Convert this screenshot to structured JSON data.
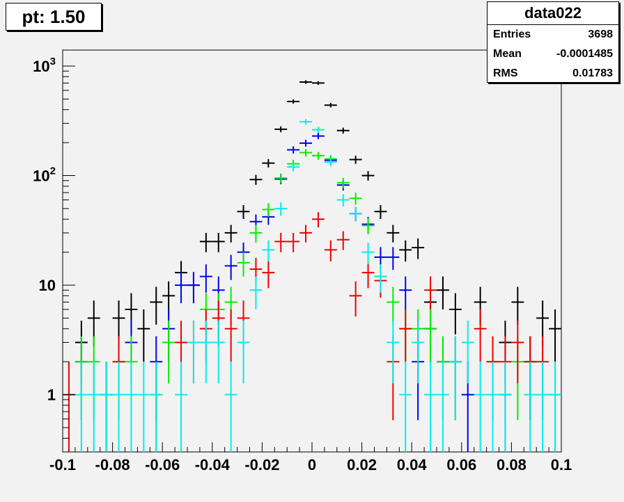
{
  "title": "pt: 1.50",
  "stats": {
    "name": "data022",
    "rows": [
      {
        "label": "Entries",
        "value": "3698"
      },
      {
        "label": "Mean",
        "value": "-0.0001485"
      },
      {
        "label": "RMS",
        "value": "0.01783"
      }
    ]
  },
  "chart_data": {
    "type": "scatter",
    "title": "pt: 1.50",
    "xlabel": "",
    "ylabel": "",
    "xlim": [
      -0.1,
      0.1
    ],
    "ylim": [
      0.3,
      1400
    ],
    "yscale": "log",
    "bin_width": 0.005,
    "x_ticks": [
      {
        "v": -0.1,
        "label": "-0.1"
      },
      {
        "v": -0.08,
        "label": "-0.08"
      },
      {
        "v": -0.06,
        "label": "-0.06"
      },
      {
        "v": -0.04,
        "label": "-0.04"
      },
      {
        "v": -0.02,
        "label": "-0.02"
      },
      {
        "v": 0,
        "label": "0"
      },
      {
        "v": 0.02,
        "label": "0.02"
      },
      {
        "v": 0.04,
        "label": "0.04"
      },
      {
        "v": 0.06,
        "label": "0.06"
      },
      {
        "v": 0.08,
        "label": "0.08"
      },
      {
        "v": 0.1,
        "label": "0.1"
      }
    ],
    "y_ticks": [
      {
        "v": 1,
        "label": "1"
      },
      {
        "v": 10,
        "label": "10"
      },
      {
        "v": 100,
        "base": "10",
        "exp": "2"
      },
      {
        "v": 1000,
        "base": "10",
        "exp": "3"
      }
    ],
    "grid": false,
    "series": [
      {
        "color": "#000000",
        "points": [
          [
            -0.0925,
            3
          ],
          [
            -0.0875,
            5
          ],
          [
            -0.0825,
            1
          ],
          [
            -0.0775,
            5
          ],
          [
            -0.0725,
            6
          ],
          [
            -0.0675,
            4
          ],
          [
            -0.0625,
            7
          ],
          [
            -0.0575,
            8
          ],
          [
            -0.0525,
            13
          ],
          [
            -0.0475,
            10
          ],
          [
            -0.0425,
            25
          ],
          [
            -0.0375,
            25
          ],
          [
            -0.0325,
            30
          ],
          [
            -0.0275,
            47
          ],
          [
            -0.0225,
            92
          ],
          [
            -0.0175,
            130
          ],
          [
            -0.0125,
            265
          ],
          [
            -0.0075,
            475
          ],
          [
            -0.0025,
            715
          ],
          [
            0.0025,
            700
          ],
          [
            0.0075,
            440
          ],
          [
            0.0125,
            258
          ],
          [
            0.0175,
            140
          ],
          [
            0.0225,
            100
          ],
          [
            0.0275,
            47
          ],
          [
            0.0325,
            30
          ],
          [
            0.0375,
            21
          ],
          [
            0.0425,
            22
          ],
          [
            0.0475,
            7
          ],
          [
            0.0525,
            9
          ],
          [
            0.0575,
            6
          ],
          [
            0.0675,
            7
          ],
          [
            0.0775,
            3
          ],
          [
            0.0825,
            7
          ],
          [
            0.0875,
            2
          ],
          [
            0.0925,
            5
          ],
          [
            0.0975,
            4
          ]
        ]
      },
      {
        "color": "#0000ee",
        "points": [
          [
            -0.0925,
            2
          ],
          [
            -0.0725,
            3
          ],
          [
            -0.0625,
            2
          ],
          [
            -0.0575,
            4
          ],
          [
            -0.0525,
            10
          ],
          [
            -0.0475,
            10
          ],
          [
            -0.0425,
            12
          ],
          [
            -0.0375,
            9
          ],
          [
            -0.0325,
            15
          ],
          [
            -0.0275,
            20
          ],
          [
            -0.0225,
            38
          ],
          [
            -0.0175,
            42
          ],
          [
            -0.0125,
            93
          ],
          [
            -0.0075,
            172
          ],
          [
            -0.0025,
            198
          ],
          [
            0.0025,
            230
          ],
          [
            0.0075,
            138
          ],
          [
            0.0125,
            82
          ],
          [
            0.0175,
            45
          ],
          [
            0.0225,
            36
          ],
          [
            0.0275,
            18
          ],
          [
            0.0325,
            18
          ],
          [
            0.0375,
            9
          ],
          [
            0.0425,
            2
          ],
          [
            0.0475,
            4
          ],
          [
            0.0525,
            2
          ],
          [
            0.0575,
            2
          ],
          [
            0.0625,
            1
          ],
          [
            0.0775,
            1
          ]
        ]
      },
      {
        "color": "#00ee00",
        "points": [
          [
            -0.0925,
            2
          ],
          [
            -0.0875,
            2
          ],
          [
            -0.0775,
            2
          ],
          [
            -0.0725,
            2
          ],
          [
            -0.0625,
            1
          ],
          [
            -0.0575,
            3
          ],
          [
            -0.0425,
            6
          ],
          [
            -0.0375,
            6
          ],
          [
            -0.0325,
            7
          ],
          [
            -0.0275,
            16
          ],
          [
            -0.0225,
            30
          ],
          [
            -0.0175,
            49
          ],
          [
            -0.0125,
            95
          ],
          [
            -0.0075,
            128
          ],
          [
            -0.0025,
            162
          ],
          [
            0.0025,
            152
          ],
          [
            0.0075,
            142
          ],
          [
            0.0125,
            86
          ],
          [
            0.0175,
            62
          ],
          [
            0.0225,
            35
          ],
          [
            0.0275,
            12
          ],
          [
            0.0325,
            7
          ],
          [
            0.0375,
            4
          ],
          [
            0.0425,
            4
          ],
          [
            0.0475,
            4
          ],
          [
            0.0525,
            2
          ],
          [
            0.0575,
            2
          ],
          [
            0.0725,
            2
          ],
          [
            0.0825,
            2
          ],
          [
            0.0875,
            2
          ],
          [
            0.0975,
            1
          ]
        ]
      },
      {
        "color": "#ee0000",
        "points": [
          [
            -0.0975,
            1
          ],
          [
            -0.0775,
            2
          ],
          [
            -0.0525,
            3
          ],
          [
            -0.0475,
            3
          ],
          [
            -0.0425,
            4
          ],
          [
            -0.0375,
            5
          ],
          [
            -0.0325,
            4
          ],
          [
            -0.0275,
            5
          ],
          [
            -0.0225,
            14
          ],
          [
            -0.0175,
            13
          ],
          [
            -0.0125,
            25
          ],
          [
            -0.0075,
            25
          ],
          [
            -0.0025,
            30
          ],
          [
            0.0025,
            40
          ],
          [
            0.0075,
            21
          ],
          [
            0.0125,
            26
          ],
          [
            0.0175,
            8
          ],
          [
            0.0225,
            13
          ],
          [
            0.0275,
            11
          ],
          [
            0.0325,
            2
          ],
          [
            0.0375,
            4
          ],
          [
            0.0425,
            3
          ],
          [
            0.0475,
            9
          ],
          [
            0.0675,
            4
          ],
          [
            0.0725,
            2
          ],
          [
            0.0775,
            2
          ],
          [
            0.0825,
            3
          ],
          [
            0.0875,
            2
          ],
          [
            0.0925,
            2
          ]
        ]
      },
      {
        "color": "#00eeee",
        "points": [
          [
            -0.0925,
            1
          ],
          [
            -0.0875,
            1
          ],
          [
            -0.0825,
            1
          ],
          [
            -0.0775,
            1
          ],
          [
            -0.0725,
            1
          ],
          [
            -0.0675,
            1
          ],
          [
            -0.0625,
            1
          ],
          [
            -0.0525,
            1
          ],
          [
            -0.0475,
            3
          ],
          [
            -0.0425,
            3
          ],
          [
            -0.0375,
            3
          ],
          [
            -0.0325,
            1
          ],
          [
            -0.0275,
            3
          ],
          [
            -0.0225,
            9
          ],
          [
            -0.0175,
            21
          ],
          [
            -0.0125,
            50
          ],
          [
            -0.0075,
            120
          ],
          [
            -0.0025,
            310
          ],
          [
            0.0025,
            262
          ],
          [
            0.0075,
            133
          ],
          [
            0.0125,
            60
          ],
          [
            0.0175,
            45
          ],
          [
            0.0225,
            20
          ],
          [
            0.0275,
            12
          ],
          [
            0.0325,
            3
          ],
          [
            0.0375,
            1
          ],
          [
            0.0425,
            3
          ],
          [
            0.0475,
            1
          ],
          [
            0.0525,
            1
          ],
          [
            0.0575,
            2
          ],
          [
            0.0625,
            3
          ],
          [
            0.0675,
            1
          ],
          [
            0.0725,
            1
          ],
          [
            0.0775,
            1
          ],
          [
            0.0875,
            1
          ],
          [
            0.0925,
            1
          ],
          [
            0.0975,
            1
          ]
        ]
      }
    ]
  }
}
